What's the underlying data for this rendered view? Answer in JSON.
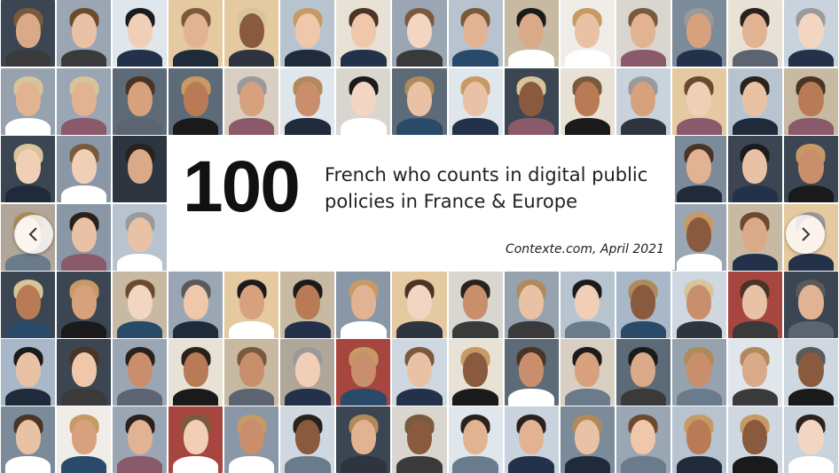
{
  "headline": {
    "number": "100",
    "subtitle": "French who counts in digital public policies in France & Europe",
    "source": "Contexte.com, April 2021"
  },
  "navigation": {
    "prev_icon": "chevron-left-icon",
    "next_icon": "chevron-right-icon"
  },
  "palette": {
    "backgrounds": [
      "#c9d3de",
      "#8a97a6",
      "#e8e2d6",
      "#b7c4cf",
      "#d9d6d0",
      "#5d6a78",
      "#a9b8c9",
      "#f0ede8",
      "#9aa6b3",
      "#3b4652",
      "#c7b9a2",
      "#dfe6ec",
      "#7c8b99",
      "#e5c9a0",
      "#b0a69a",
      "#2c3540",
      "#cfd8e1",
      "#a7463f",
      "#d8cfc2",
      "#96a2ae"
    ],
    "skins": [
      "#e9c2a5",
      "#d9a988",
      "#f0cfb6",
      "#c98f6c",
      "#e2b393",
      "#8a5a3f",
      "#f3d6c2",
      "#d7a17d",
      "#b97b55",
      "#efc7ab"
    ],
    "hairs": [
      "#2a211c",
      "#4a3426",
      "#7a5a3c",
      "#b08a5a",
      "#d8c49a",
      "#5a5a5a",
      "#9a9a9a",
      "#1b1b1b",
      "#6b4a2e",
      "#c79a64"
    ],
    "suits": [
      "#1f2a3a",
      "#2e3440",
      "#5b6470",
      "#ffffff",
      "#23324a",
      "#3a3a3a",
      "#6a7b8c",
      "#1a1a1a",
      "#8a5a6a",
      "#2a4a6a"
    ]
  }
}
